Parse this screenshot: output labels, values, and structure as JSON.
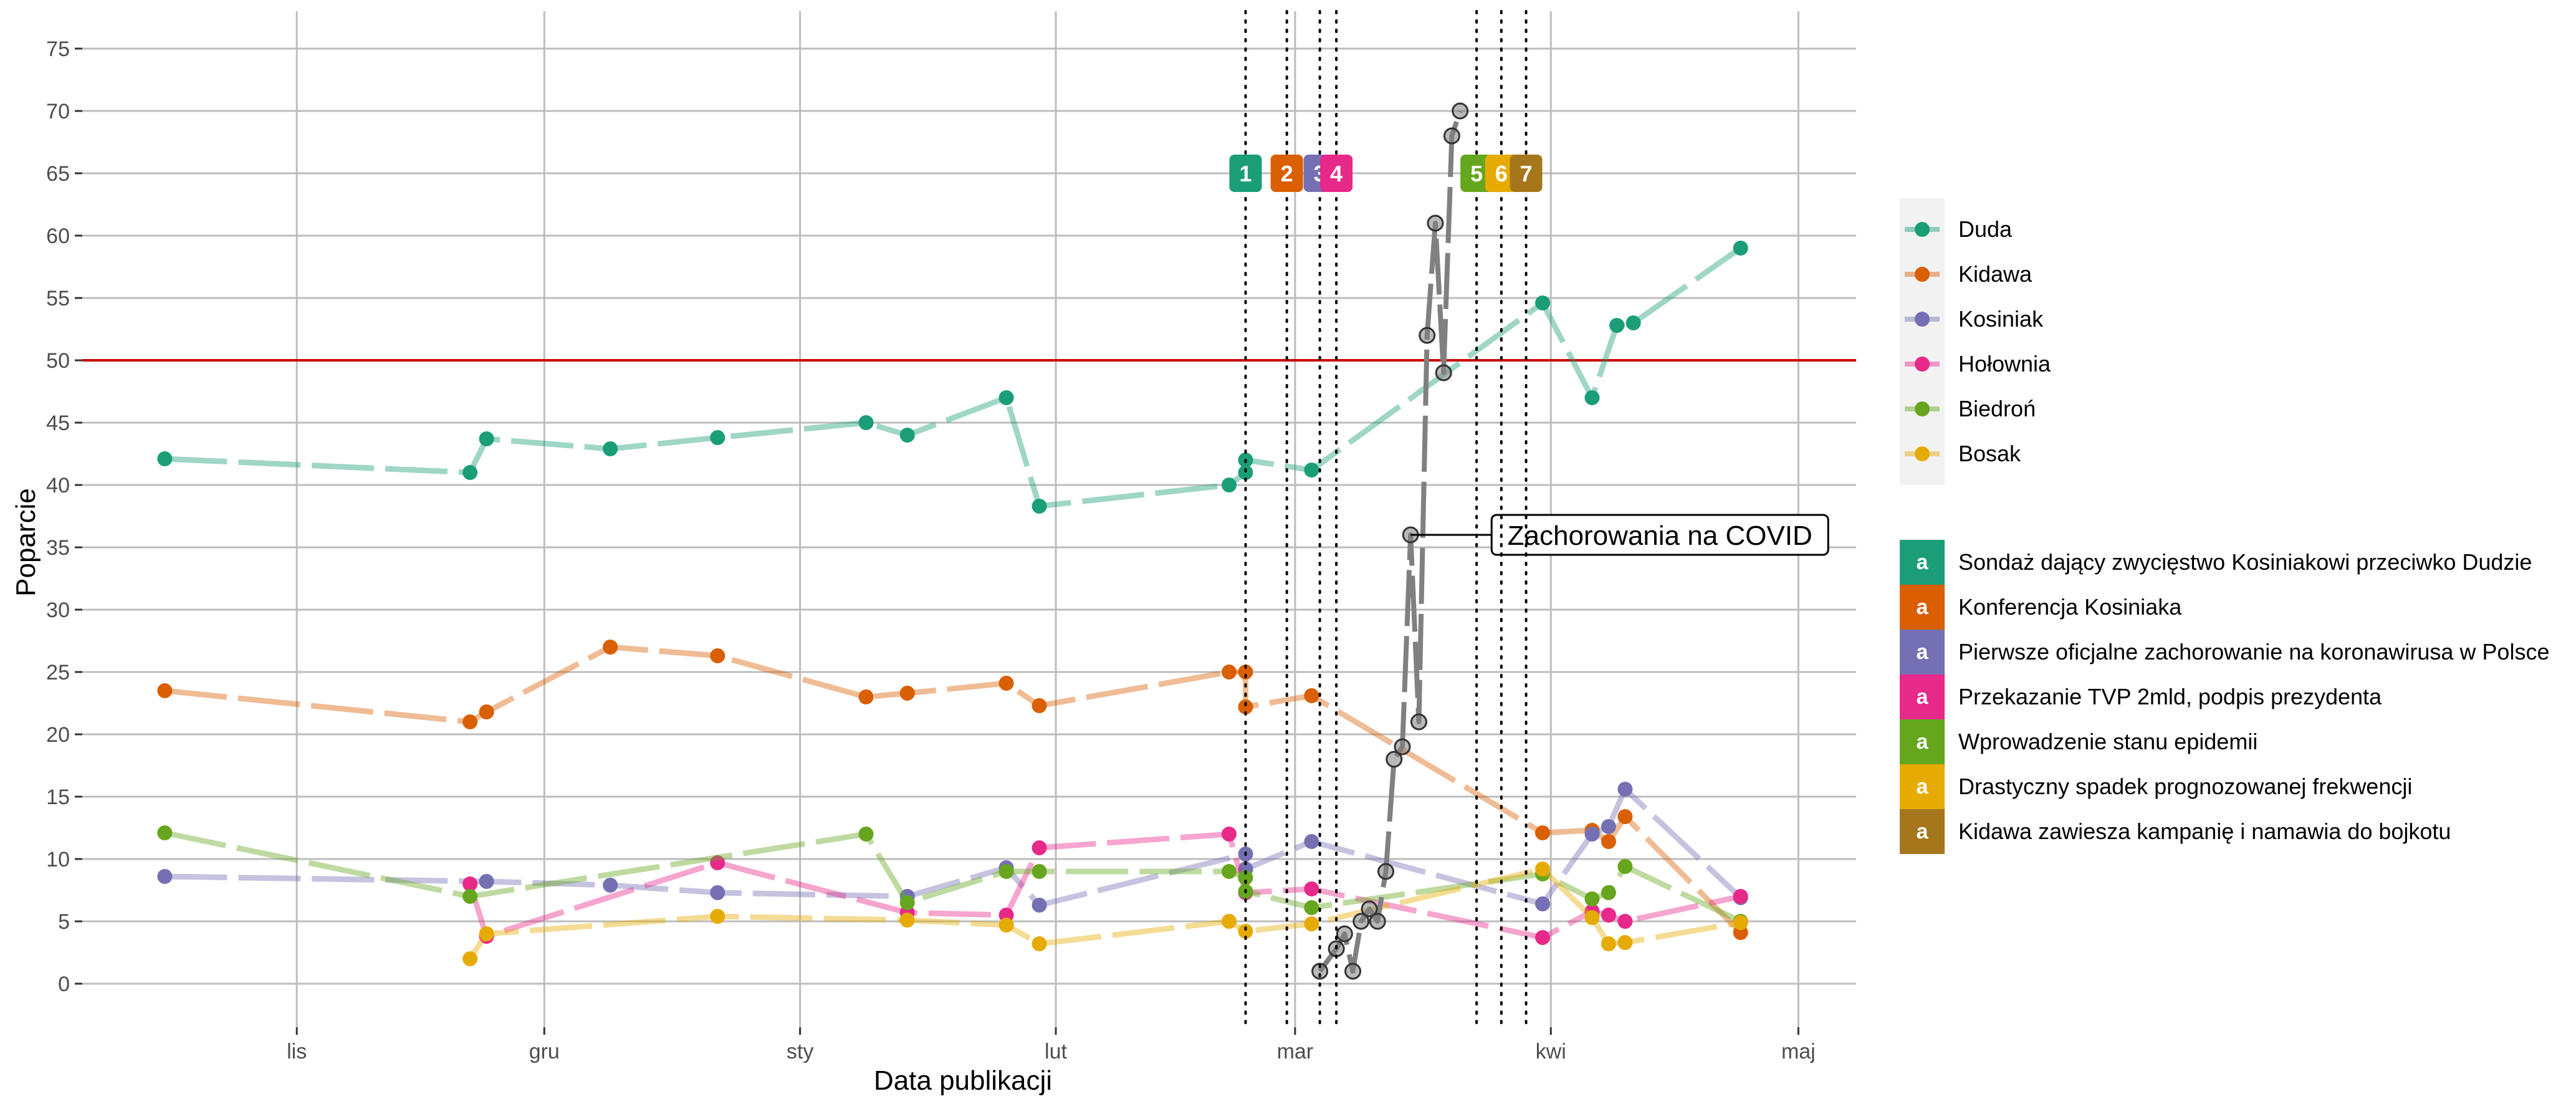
{
  "chart_data": {
    "type": "line",
    "xlabel": "Data publikacji",
    "ylabel": "Poparcie",
    "x_range": [
      "2019-10-06",
      "2020-05-08"
    ],
    "ylim": [
      -3.5,
      78
    ],
    "yticks": [
      0,
      5,
      10,
      15,
      20,
      25,
      30,
      35,
      40,
      45,
      50,
      55,
      60,
      65,
      70,
      75
    ],
    "month_ticks": [
      {
        "label": "lis",
        "date": "2019-11-01"
      },
      {
        "label": "gru",
        "date": "2019-12-01"
      },
      {
        "label": "sty",
        "date": "2020-01-01"
      },
      {
        "label": "lut",
        "date": "2020-02-01"
      },
      {
        "label": "mar",
        "date": "2020-03-01"
      },
      {
        "label": "kwi",
        "date": "2020-04-01"
      },
      {
        "label": "maj",
        "date": "2020-05-01"
      }
    ],
    "grid": true,
    "threshold": {
      "value": 50,
      "color": "#cc0000"
    },
    "legend_position": "right",
    "series": [
      {
        "name": "Duda",
        "color": "#1b9e77",
        "points": [
          [
            "2019-10-16",
            42.1
          ],
          [
            "2019-11-22",
            41
          ],
          [
            "2019-11-24",
            43.7
          ],
          [
            "2019-12-09",
            42.9
          ],
          [
            "2019-12-22",
            43.8
          ],
          [
            "2020-01-09",
            45
          ],
          [
            "2020-01-14",
            44
          ],
          [
            "2020-01-26",
            47
          ],
          [
            "2020-01-30",
            38.3
          ],
          [
            "2020-02-22",
            40
          ],
          [
            "2020-02-24",
            41
          ],
          [
            "2020-02-24",
            42
          ],
          [
            "2020-03-03",
            41.2
          ],
          [
            "2020-03-31",
            54.6
          ],
          [
            "2020-04-06",
            47
          ],
          [
            "2020-04-09",
            52.8
          ],
          [
            "2020-04-11",
            53
          ],
          [
            "2020-04-24",
            59
          ]
        ]
      },
      {
        "name": "Kidawa",
        "color": "#d95f02",
        "points": [
          [
            "2019-10-16",
            23.5
          ],
          [
            "2019-11-22",
            21
          ],
          [
            "2019-11-24",
            21.8
          ],
          [
            "2019-12-09",
            27
          ],
          [
            "2019-12-22",
            26.3
          ],
          [
            "2020-01-09",
            23
          ],
          [
            "2020-01-14",
            23.3
          ],
          [
            "2020-01-26",
            24.1
          ],
          [
            "2020-01-30",
            22.3
          ],
          [
            "2020-02-22",
            25
          ],
          [
            "2020-02-24",
            25
          ],
          [
            "2020-02-24",
            22.2
          ],
          [
            "2020-03-03",
            23.1
          ],
          [
            "2020-03-31",
            12.1
          ],
          [
            "2020-04-06",
            12.3
          ],
          [
            "2020-04-08",
            11.4
          ],
          [
            "2020-04-10",
            13.4
          ],
          [
            "2020-04-24",
            4.1
          ]
        ]
      },
      {
        "name": "Kosiniak",
        "color": "#7570b3",
        "points": [
          [
            "2019-10-16",
            8.6
          ],
          [
            "2019-11-24",
            8.2
          ],
          [
            "2019-12-09",
            7.9
          ],
          [
            "2019-12-22",
            7.3
          ],
          [
            "2020-01-14",
            7
          ],
          [
            "2020-01-26",
            9.3
          ],
          [
            "2020-01-30",
            6.3
          ],
          [
            "2020-02-24",
            10.4
          ],
          [
            "2020-02-24",
            9.2
          ],
          [
            "2020-03-03",
            11.4
          ],
          [
            "2020-03-31",
            6.4
          ],
          [
            "2020-04-06",
            12
          ],
          [
            "2020-04-08",
            12.6
          ],
          [
            "2020-04-10",
            15.6
          ],
          [
            "2020-04-24",
            6.9
          ]
        ]
      },
      {
        "name": "Hołownia",
        "color": "#e7298a",
        "points": [
          [
            "2019-11-22",
            8
          ],
          [
            "2019-11-24",
            3.8
          ],
          [
            "2019-12-22",
            9.7
          ],
          [
            "2020-01-14",
            5.7
          ],
          [
            "2020-01-26",
            5.5
          ],
          [
            "2020-01-30",
            10.9
          ],
          [
            "2020-02-22",
            12
          ],
          [
            "2020-02-24",
            7.3
          ],
          [
            "2020-03-03",
            7.6
          ],
          [
            "2020-03-31",
            3.7
          ],
          [
            "2020-04-06",
            5.8
          ],
          [
            "2020-04-08",
            5.5
          ],
          [
            "2020-04-10",
            5
          ],
          [
            "2020-04-24",
            7
          ]
        ]
      },
      {
        "name": "Biedroń",
        "color": "#66a61e",
        "points": [
          [
            "2019-10-16",
            12.1
          ],
          [
            "2019-11-22",
            7
          ],
          [
            "2020-01-09",
            12
          ],
          [
            "2020-01-14",
            6.5
          ],
          [
            "2020-01-26",
            9
          ],
          [
            "2020-01-30",
            9
          ],
          [
            "2020-02-22",
            9
          ],
          [
            "2020-02-24",
            8.5
          ],
          [
            "2020-02-24",
            7.4
          ],
          [
            "2020-03-03",
            6.1
          ],
          [
            "2020-03-31",
            8.8
          ],
          [
            "2020-04-06",
            6.8
          ],
          [
            "2020-04-08",
            7.3
          ],
          [
            "2020-04-10",
            9.4
          ],
          [
            "2020-04-24",
            5
          ]
        ]
      },
      {
        "name": "Bosak",
        "color": "#e6ab02",
        "points": [
          [
            "2019-11-22",
            2
          ],
          [
            "2019-11-24",
            4
          ],
          [
            "2019-12-22",
            5.4
          ],
          [
            "2020-01-14",
            5.1
          ],
          [
            "2020-01-26",
            4.7
          ],
          [
            "2020-01-30",
            3.2
          ],
          [
            "2020-02-22",
            5
          ],
          [
            "2020-02-24",
            4.2
          ],
          [
            "2020-03-03",
            4.8
          ],
          [
            "2020-03-31",
            9.2
          ],
          [
            "2020-04-06",
            5.3
          ],
          [
            "2020-04-08",
            3.2
          ],
          [
            "2020-04-10",
            3.3
          ],
          [
            "2020-04-24",
            4.9
          ]
        ]
      }
    ],
    "covid_series": {
      "color": "#808080",
      "points": [
        [
          "2020-03-04",
          1
        ],
        [
          "2020-03-06",
          2.8
        ],
        [
          "2020-03-07",
          4
        ],
        [
          "2020-03-08",
          1
        ],
        [
          "2020-03-09",
          5
        ],
        [
          "2020-03-10",
          6
        ],
        [
          "2020-03-11",
          5
        ],
        [
          "2020-03-12",
          9
        ],
        [
          "2020-03-13",
          18
        ],
        [
          "2020-03-14",
          19
        ],
        [
          "2020-03-15",
          36
        ],
        [
          "2020-03-16",
          21
        ],
        [
          "2020-03-17",
          52
        ],
        [
          "2020-03-18",
          61
        ],
        [
          "2020-03-19",
          49
        ],
        [
          "2020-03-20",
          68
        ],
        [
          "2020-03-21",
          70
        ]
      ],
      "label": "Zachorowania na COVID",
      "label_anchor": [
        "2020-03-15",
        36
      ]
    },
    "events": [
      {
        "id": "1",
        "date": "2020-02-24",
        "color": "#1b9e77",
        "text": "Sondaż dający zwycięstwo Kosiniakowi przeciwko Dudzie"
      },
      {
        "id": "2",
        "date": "2020-02-29",
        "color": "#d95f02",
        "text": "Konferencja Kosiniaka"
      },
      {
        "id": "3",
        "date": "2020-03-04",
        "color": "#7570b3",
        "text": "Pierwsze oficjalne zachorowanie na koronawirusa w Polsce"
      },
      {
        "id": "4",
        "date": "2020-03-06",
        "color": "#e7298a",
        "text": "Przekazanie TVP 2mld, podpis prezydenta"
      },
      {
        "id": "5",
        "date": "2020-03-23",
        "color": "#66a61e",
        "text": "Wprowadzenie stanu epidemii"
      },
      {
        "id": "6",
        "date": "2020-03-26",
        "color": "#e6ab02",
        "text": "Drastyczny spadek prognozowanej frekwencji"
      },
      {
        "id": "7",
        "date": "2020-03-29",
        "color": "#a6761d",
        "text": "Kidawa zawiesza kampanię i namawia do bojkotu"
      }
    ],
    "event_marker_y": 65,
    "event_key_letter": "a"
  }
}
